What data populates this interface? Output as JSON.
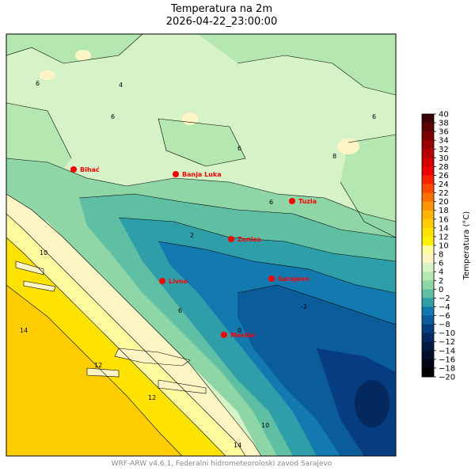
{
  "title": "Temperatura na 2m",
  "timestamp": "2026-04-22_23:00:00",
  "footer": "WRF-ARW v4.6.1, Federalni hidrometeoroloski zavod Sarajevo",
  "colorbar": {
    "label": "Temperatura (°C)",
    "ticks": [
      "40",
      "38",
      "36",
      "34",
      "32",
      "30",
      "28",
      "26",
      "24",
      "22",
      "20",
      "18",
      "16",
      "14",
      "12",
      "10",
      "8",
      "6",
      "4",
      "2",
      "0",
      "−2",
      "−4",
      "−6",
      "−8",
      "−10",
      "−12",
      "−14",
      "−16",
      "−18",
      "−20"
    ],
    "colors": [
      "#3a0004",
      "#5c0000",
      "#7c0000",
      "#9a0000",
      "#b80000",
      "#d40000",
      "#ee0000",
      "#ff2200",
      "#ff4a00",
      "#ff7000",
      "#ff9400",
      "#ffb400",
      "#ffce00",
      "#ffe200",
      "#fff100",
      "#fffca0",
      "#fdf6c4",
      "#d6f3c8",
      "#b4e8b0",
      "#8ed6a6",
      "#5ebfa2",
      "#2e9fa8",
      "#137aaf",
      "#0b5c9a",
      "#063d80",
      "#04295f",
      "#031a43",
      "#020d28",
      "#010514",
      "#000000"
    ]
  },
  "cities": [
    {
      "name": "Bihać"
    },
    {
      "name": "Banja Luka"
    },
    {
      "name": "Tuzla"
    },
    {
      "name": "Zenica"
    },
    {
      "name": "Livno"
    },
    {
      "name": "Sarajevo"
    },
    {
      "name": "Mostar"
    }
  ],
  "contour_labels": [
    "4",
    "6",
    "8",
    "10",
    "12",
    "14",
    "0",
    "2",
    "-2"
  ],
  "city_color": "#ff0000"
}
